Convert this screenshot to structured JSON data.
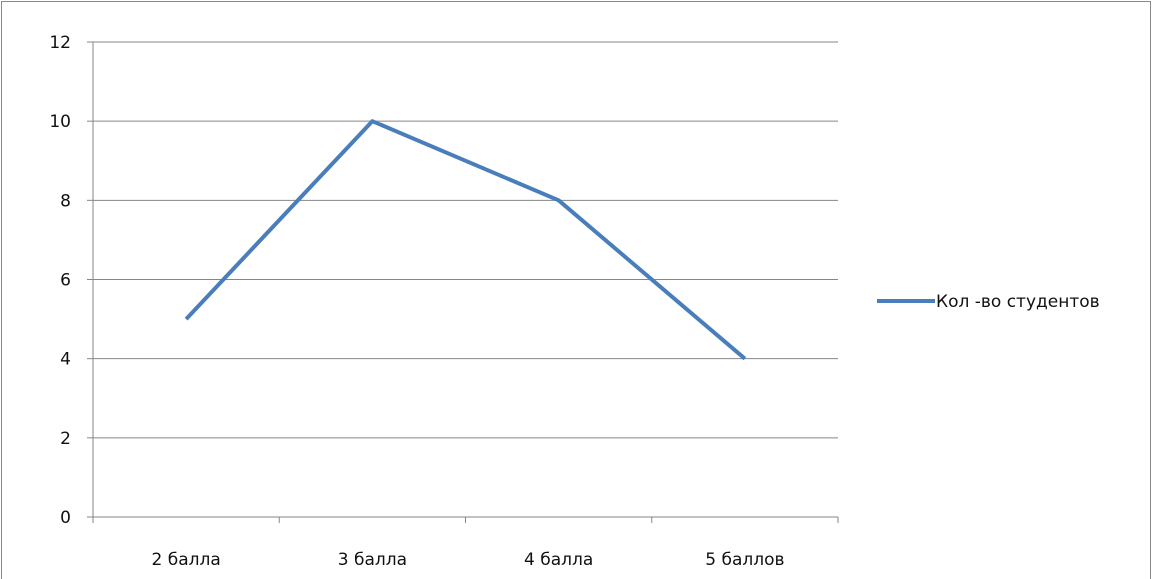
{
  "chart_data": {
    "type": "line",
    "categories": [
      "2 балла",
      "3 балла",
      "4 балла",
      "5 баллов"
    ],
    "series": [
      {
        "name": "Кол -во студентов",
        "values": [
          5,
          10,
          8,
          4
        ],
        "color": "#4a7ebb"
      }
    ],
    "title": "",
    "xlabel": "",
    "ylabel": "",
    "ylim": [
      0,
      12
    ],
    "yticks": [
      0,
      2,
      4,
      6,
      8,
      10,
      12
    ],
    "grid": true,
    "legend_position": "right"
  }
}
